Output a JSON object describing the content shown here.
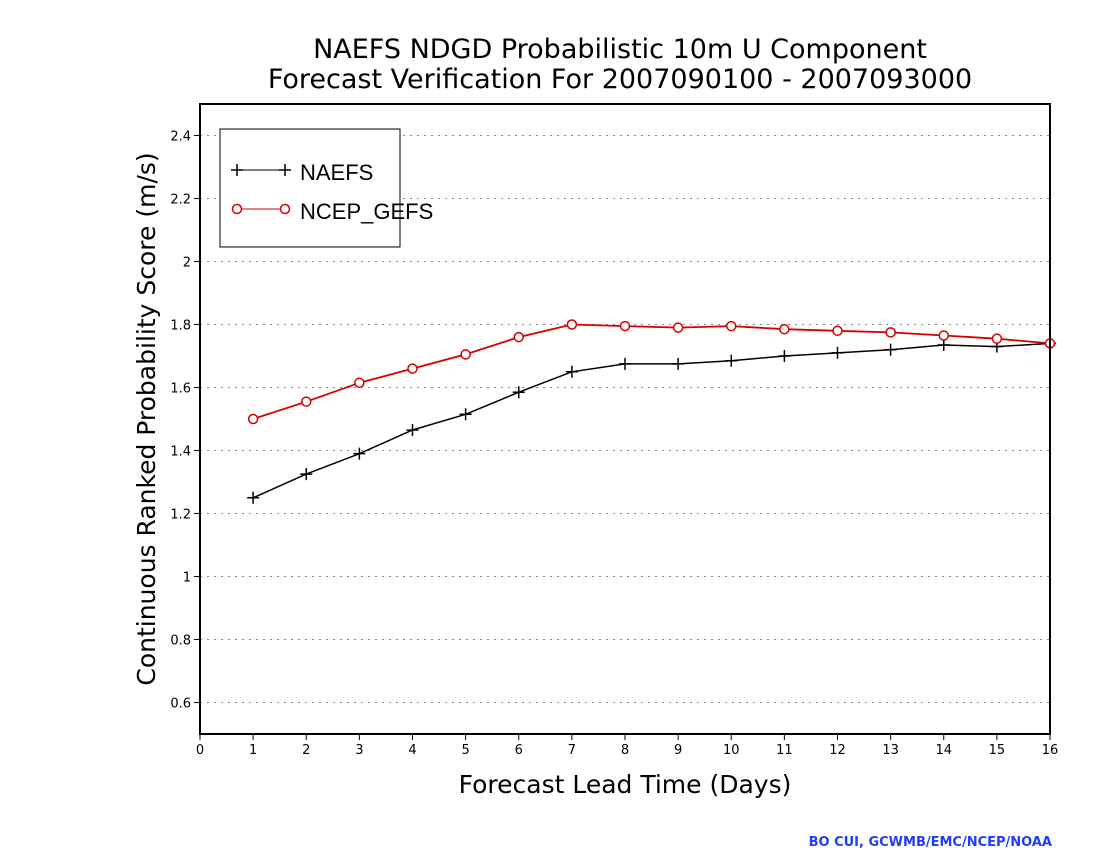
{
  "chart_data": {
    "type": "line",
    "title": [
      "NAEFS NDGD Probabilistic 10m U Component",
      "Forecast Verification For 2007090100 - 2007093000"
    ],
    "xlabel": "Forecast Lead Time (Days)",
    "ylabel": "Continuous Ranked Probability Score (m/s)",
    "xlim": [
      0,
      16
    ],
    "ylim": [
      0.5,
      2.5
    ],
    "x_ticks": [
      0,
      1,
      2,
      3,
      4,
      5,
      6,
      7,
      8,
      9,
      10,
      11,
      12,
      13,
      14,
      15,
      16
    ],
    "y_ticks": [
      0.6,
      0.8,
      1,
      1.2,
      1.4,
      1.6,
      1.8,
      2,
      2.2,
      2.4
    ],
    "y_tick_labels": [
      "0.6",
      "0.8",
      "1",
      "1.2",
      "1.4",
      "1.6",
      "1.8",
      "2",
      "2.2",
      "2.4"
    ],
    "grid": "horizontal dotted",
    "legend_position": "top-left",
    "x": [
      1,
      2,
      3,
      4,
      5,
      6,
      7,
      8,
      9,
      10,
      11,
      12,
      13,
      14,
      15,
      16
    ],
    "series": [
      {
        "name": "NAEFS",
        "color": "#000000",
        "marker": "plus",
        "values": [
          1.25,
          1.325,
          1.39,
          1.465,
          1.515,
          1.585,
          1.65,
          1.675,
          1.675,
          1.685,
          1.7,
          1.71,
          1.72,
          1.735,
          1.73,
          1.74
        ]
      },
      {
        "name": "NCEP_GEFS",
        "color": "#d40000",
        "marker": "circle",
        "values": [
          1.5,
          1.555,
          1.615,
          1.66,
          1.705,
          1.76,
          1.8,
          1.795,
          1.79,
          1.795,
          1.785,
          1.78,
          1.775,
          1.765,
          1.755,
          1.74
        ]
      }
    ]
  },
  "credit": "BO CUI, GCWMB/EMC/NCEP/NOAA"
}
